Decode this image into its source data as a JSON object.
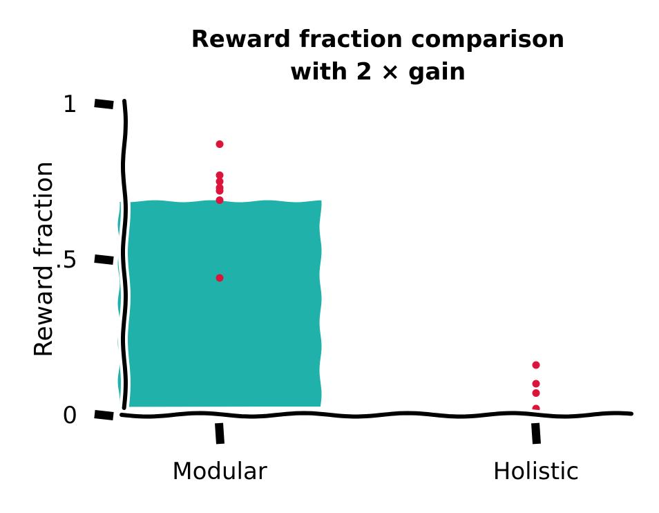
{
  "chart_data": {
    "type": "bar",
    "title": [
      "Reward fraction comparison",
      "with 2 × gain"
    ],
    "xlabel": "",
    "ylabel": "Reward fraction",
    "categories": [
      "Modular",
      "Holistic"
    ],
    "values": [
      0.69,
      0.02
    ],
    "points": [
      [
        0.87,
        0.77,
        0.75,
        0.73,
        0.72,
        0.69,
        0.44
      ],
      [
        0.16,
        0.1,
        0.07,
        0.02
      ]
    ],
    "ylim": [
      0,
      1
    ],
    "yticks": [
      0,
      0.5,
      1
    ],
    "ytick_labels": [
      "0",
      ".5",
      "1"
    ],
    "grid": false,
    "colors": {
      "bars": [
        "#20b2aa",
        "#fa8072"
      ],
      "points": "#dc143c",
      "axis": "#000000"
    }
  }
}
